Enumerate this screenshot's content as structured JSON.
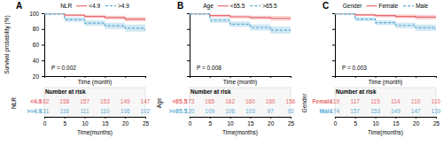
{
  "chart_data": [
    {
      "type": "step",
      "title": "A",
      "x": [
        0,
        5,
        10,
        15,
        20,
        25
      ],
      "xlim": [
        0,
        25
      ],
      "xticks": [
        0,
        5,
        10,
        15,
        20,
        25
      ],
      "ylim": [
        20,
        100
      ],
      "yticks": [
        20,
        40,
        60,
        80,
        100
      ],
      "x_label": "Time (month)",
      "y_label": "Survival probability (%)",
      "legend": "top",
      "legend_title": "NLR",
      "annotations": [
        "P = 0.002"
      ],
      "series": [
        {
          "name": "<4.9",
          "color": "#E8696B",
          "line_style": "solid",
          "values": [
            100,
            97.5,
            96.0,
            94.5,
            92.5,
            91.0
          ],
          "lower": [
            100,
            96.0,
            94.0,
            92.0,
            89.5,
            87.5
          ],
          "upper": [
            100,
            99.0,
            98.0,
            97.0,
            95.5,
            94.5
          ]
        },
        {
          "name": ">4.9",
          "color": "#5BACD4",
          "line_style": "dashed",
          "values": [
            99,
            92.0,
            87.5,
            84.0,
            81.0,
            78.0
          ],
          "lower": [
            98,
            89.0,
            84.0,
            80.0,
            76.5,
            73.0
          ],
          "upper": [
            100,
            95.0,
            91.0,
            88.0,
            85.5,
            83.0
          ]
        }
      ],
      "risk_table": {
        "title": "Number at risk",
        "label": "NLR",
        "x_label": "Time(months)",
        "rows": [
          {
            "name": "<4.9",
            "values": [
              162,
              158,
              157,
              153,
              149,
              147
            ]
          },
          {
            "name": ">=4.9",
            "values": [
              131,
              116,
              111,
              110,
              106,
              102
            ]
          }
        ]
      }
    },
    {
      "type": "step",
      "title": "B",
      "x": [
        0,
        5,
        10,
        15,
        20,
        25
      ],
      "xlim": [
        0,
        25
      ],
      "xticks": [
        0,
        5,
        10,
        15,
        20,
        25
      ],
      "ylim": [
        20,
        100
      ],
      "yticks": [
        20,
        40,
        60,
        80,
        100
      ],
      "tick_labels": "x",
      "x_label": "Time (month)",
      "legend": "top",
      "legend_title": "Age",
      "annotations": [
        "P = 0.008"
      ],
      "series": [
        {
          "name": "<65.5",
          "color": "#E8696B",
          "line_style": "solid",
          "values": [
            100,
            97.0,
            95.5,
            94.5,
            93.5,
            92.5
          ],
          "lower": [
            100,
            95.5,
            93.5,
            92.0,
            90.5,
            89.0
          ],
          "upper": [
            100,
            98.5,
            97.5,
            97.0,
            96.5,
            96.0
          ]
        },
        {
          "name": ">65.5",
          "color": "#5BACD4",
          "line_style": "dashed",
          "values": [
            99,
            91.0,
            86.0,
            82.0,
            78.5,
            75.0
          ],
          "lower": [
            98,
            88.0,
            82.5,
            78.0,
            74.0,
            70.0
          ],
          "upper": [
            100,
            94.0,
            89.5,
            86.0,
            83.0,
            80.0
          ]
        }
      ],
      "risk_table": {
        "title": "Number at risk",
        "label": "Age",
        "x_label": "Time(months)",
        "rows": [
          {
            "name": "<65.5",
            "values": [
              173,
              165,
              162,
              160,
              160,
              156
            ]
          },
          {
            "name": ">=65.5",
            "values": [
              120,
              109,
              106,
              103,
              97,
              93
            ]
          }
        ]
      }
    },
    {
      "type": "step",
      "title": "C",
      "x": [
        0,
        5,
        10,
        15,
        20,
        25
      ],
      "xlim": [
        0,
        25
      ],
      "xticks": [
        0,
        5,
        10,
        15,
        20,
        25
      ],
      "ylim": [
        20,
        100
      ],
      "yticks": [
        20,
        40,
        60,
        80,
        100
      ],
      "tick_labels": "x",
      "x_label": "Time (month)",
      "legend": "top",
      "legend_title": "Gender",
      "annotations": [
        "P = 0.003"
      ],
      "series": [
        {
          "name": "Female",
          "color": "#E8696B",
          "line_style": "solid",
          "values": [
            100,
            98.0,
            97.0,
            96.0,
            95.0,
            94.0
          ],
          "lower": [
            100,
            96.5,
            95.0,
            93.5,
            92.0,
            90.5
          ],
          "upper": [
            100,
            99.5,
            99.0,
            98.5,
            98.0,
            97.5
          ]
        },
        {
          "name": "Male",
          "color": "#5BACD4",
          "line_style": "dashed",
          "values": [
            99,
            92.5,
            88.0,
            84.5,
            81.5,
            79.0
          ],
          "lower": [
            98,
            90.0,
            85.0,
            81.0,
            77.5,
            74.5
          ],
          "upper": [
            100,
            95.0,
            91.0,
            88.0,
            85.5,
            83.5
          ]
        }
      ],
      "risk_table": {
        "title": "Number at risk",
        "label": "Gender",
        "x_label": "Time(months)",
        "rows": [
          {
            "name": "Female",
            "values": [
              119,
              117,
              115,
              114,
              110,
              110
            ]
          },
          {
            "name": "Male",
            "values": [
              174,
              157,
              153,
              149,
              147,
              139
            ]
          }
        ]
      }
    }
  ]
}
